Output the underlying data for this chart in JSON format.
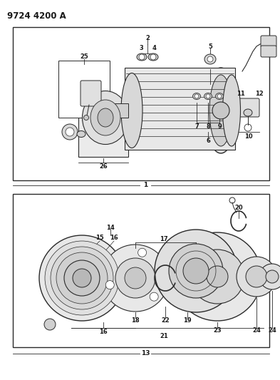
{
  "title": "9724 4200 A",
  "bg_color": "#ffffff",
  "fig_width": 3.93,
  "fig_height": 5.33,
  "dpi": 100,
  "line_color": "#2a2a2a",
  "text_color": "#1a1a1a",
  "font_size_title": 8.5,
  "font_size_label": 6.0,
  "font_size_box_label": 6.5
}
